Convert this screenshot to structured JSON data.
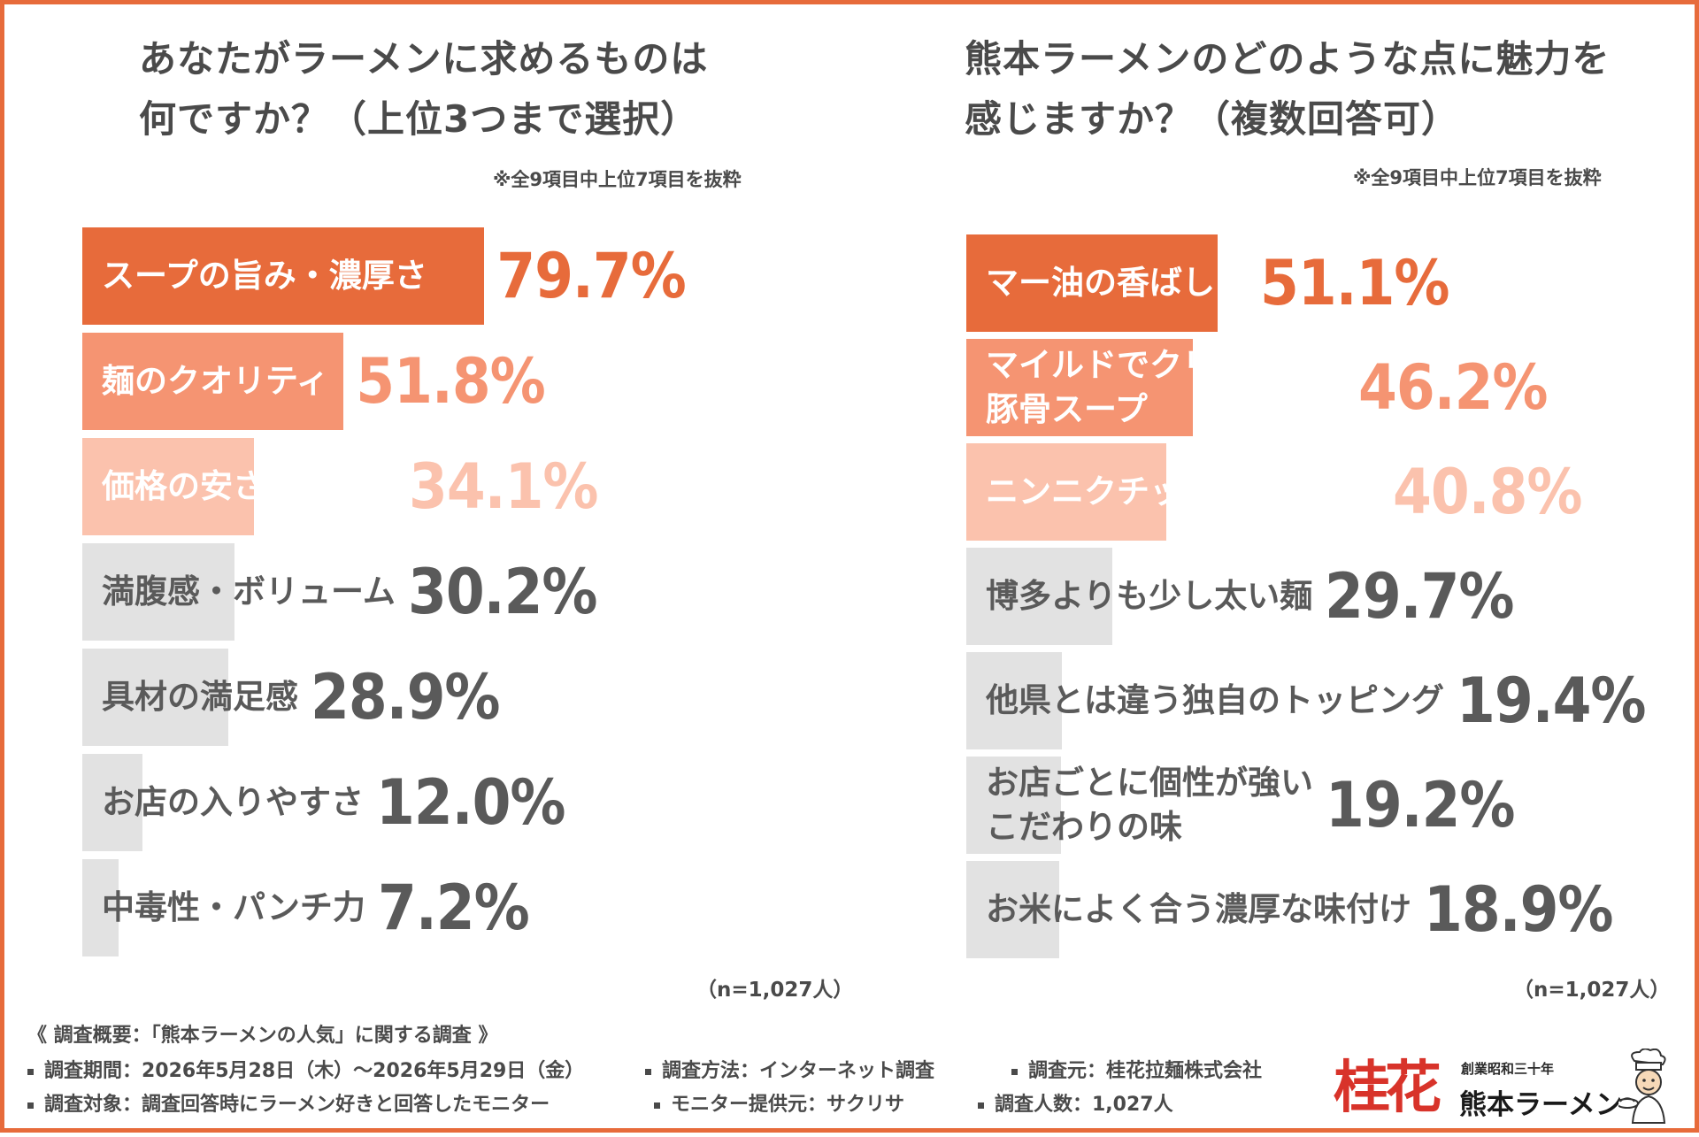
{
  "colors": {
    "frame": "#E76B3B",
    "text": "#4a4a4a"
  },
  "chart_data": [
    {
      "type": "bar",
      "orientation": "horizontal",
      "title": "あなたがラーメンに求めるものは何ですか？（上位3つまで選択）",
      "title_lines": [
        "あなたがラーメンに求めるものは",
        "何ですか？（上位3つまで選択）"
      ],
      "note": "※全9項目中上位7項目を抜粋",
      "sample": "（n=1,027人）",
      "xlim": [
        0,
        100
      ],
      "categories": [
        [
          "スープの旨み・濃厚さ"
        ],
        [
          "麺のクオリティ"
        ],
        [
          "価格の安さ・コスパ"
        ],
        [
          "満腹感・ボリューム"
        ],
        [
          "具材の満足感"
        ],
        [
          "お店の入りやすさ"
        ],
        [
          "中毒性・パンチ力"
        ]
      ],
      "values": [
        79.7,
        51.8,
        34.1,
        30.2,
        28.9,
        12.0,
        7.2
      ],
      "value_labels": [
        "79.7%",
        "51.8%",
        "34.1%",
        "30.2%",
        "28.9%",
        "12.0%",
        "7.2%"
      ],
      "bar_colors": [
        "#E76B3B",
        "#F59472",
        "#FBC2AD",
        "#E2E2E2",
        "#E2E2E2",
        "#E2E2E2",
        "#E2E2E2"
      ],
      "label_colors": [
        "#ffffff",
        "#ffffff",
        "#ffffff",
        "#5a5a5a",
        "#5a5a5a",
        "#5a5a5a",
        "#5a5a5a"
      ],
      "value_colors": [
        "#E76B3B",
        "#F59472",
        "#FBC2AD",
        "#5a5a5a",
        "#5a5a5a",
        "#5a5a5a",
        "#5a5a5a"
      ]
    },
    {
      "type": "bar",
      "orientation": "horizontal",
      "title": "熊本ラーメンのどのような点に魅力を感じますか？（複数回答可）",
      "title_lines": [
        "熊本ラーメンのどのような点に魅力を",
        "感じますか？（複数回答可）"
      ],
      "note": "※全9項目中上位7項目を抜粋",
      "sample": "（n=1,027人）",
      "xlim": [
        0,
        100
      ],
      "categories": [
        [
          "マー油の香ばしさ"
        ],
        [
          "マイルドでクリーミーな",
          "豚骨スープ"
        ],
        [
          "ニンニクチップのパンチ力"
        ],
        [
          "博多よりも少し太い麺"
        ],
        [
          "他県とは違う独自のトッピング"
        ],
        [
          "お店ごとに個性が強い",
          "こだわりの味"
        ],
        [
          "お米によく合う濃厚な味付け"
        ]
      ],
      "values": [
        51.1,
        46.2,
        40.8,
        29.7,
        19.4,
        19.2,
        18.9
      ],
      "value_labels": [
        "51.1%",
        "46.2%",
        "40.8%",
        "29.7%",
        "19.4%",
        "19.2%",
        "18.9%"
      ],
      "bar_colors": [
        "#E76B3B",
        "#F59472",
        "#FBC2AD",
        "#E2E2E2",
        "#E2E2E2",
        "#E2E2E2",
        "#E2E2E2"
      ],
      "label_colors": [
        "#ffffff",
        "#ffffff",
        "#ffffff",
        "#5a5a5a",
        "#5a5a5a",
        "#5a5a5a",
        "#5a5a5a"
      ],
      "value_colors": [
        "#E76B3B",
        "#F59472",
        "#FBC2AD",
        "#5a5a5a",
        "#5a5a5a",
        "#5a5a5a",
        "#5a5a5a"
      ]
    }
  ],
  "footer": {
    "heading": "《 調査概要：「熊本ラーメンの人気」に関する調査 》",
    "period": "調査期間：2026年5月28日（木）～2026年5月29日（金）",
    "method": "調査方法：インターネット調査",
    "source": "調査元：桂花拉麺株式会社",
    "target": "調査対象：調査回答時にラーメン好きと回答したモニター",
    "provider": "モニター提供元：サクリサ",
    "count": "調査人数：1,027人"
  },
  "logo": {
    "mark": "桂花",
    "sub": "創業昭和三十年",
    "name": "熊本ラーメン",
    "icon": "chef-icon"
  }
}
